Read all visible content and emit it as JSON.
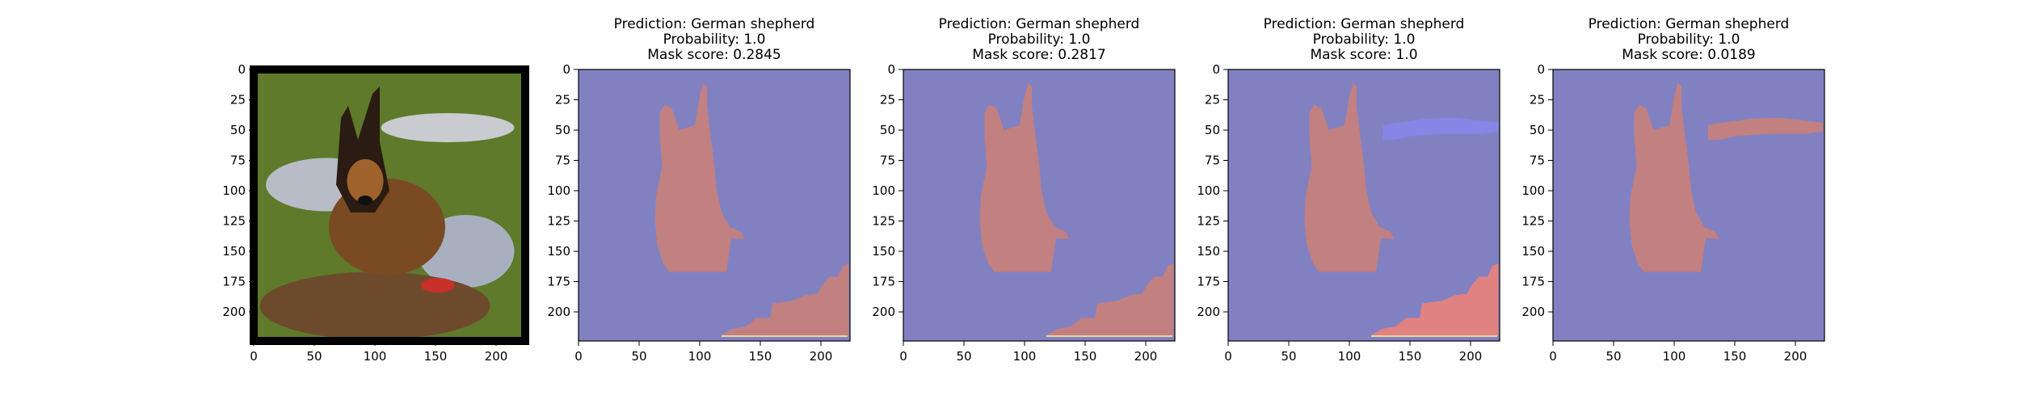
{
  "chart_data": [
    {
      "type": "image",
      "image": "german-shepherd-photo",
      "title": [],
      "xlim": [
        0,
        224
      ],
      "ylim": [
        224,
        0
      ],
      "xticks": [
        0,
        50,
        100,
        150,
        200
      ],
      "yticks": [
        0,
        25,
        50,
        75,
        100,
        125,
        150,
        175,
        200
      ]
    },
    {
      "type": "heatmap",
      "title": [
        "Prediction: German shepherd",
        "Probability: 1.0",
        "Mask score: 0.2845"
      ],
      "xlim": [
        0,
        224
      ],
      "ylim": [
        224,
        0
      ],
      "xticks": [
        0,
        50,
        100,
        150,
        200
      ],
      "yticks": [
        0,
        25,
        50,
        75,
        100,
        125,
        150,
        175,
        200
      ],
      "background_color": "#8181c2",
      "regions": [
        {
          "shape": "dog",
          "color": "#c28081"
        },
        {
          "shape": "ground",
          "color": "#c28081"
        }
      ]
    },
    {
      "type": "heatmap",
      "title": [
        "Prediction: German shepherd",
        "Probability: 1.0",
        "Mask score: 0.2817"
      ],
      "xlim": [
        0,
        224
      ],
      "ylim": [
        224,
        0
      ],
      "xticks": [
        0,
        50,
        100,
        150,
        200
      ],
      "yticks": [
        0,
        25,
        50,
        75,
        100,
        125,
        150,
        175,
        200
      ],
      "background_color": "#8181c2",
      "regions": [
        {
          "shape": "dog",
          "color": "#c28081"
        },
        {
          "shape": "ground",
          "color": "#c28081"
        }
      ]
    },
    {
      "type": "heatmap",
      "title": [
        "Prediction: German shepherd",
        "Probability: 1.0",
        "Mask score: 1.0"
      ],
      "xlim": [
        0,
        224
      ],
      "ylim": [
        224,
        0
      ],
      "xticks": [
        0,
        50,
        100,
        150,
        200
      ],
      "yticks": [
        0,
        25,
        50,
        75,
        100,
        125,
        150,
        175,
        200
      ],
      "background_color": "#8181c2",
      "regions": [
        {
          "shape": "dog",
          "color": "#c28081"
        },
        {
          "shape": "strip",
          "color": "#8686e6"
        },
        {
          "shape": "ground",
          "color": "#e08282"
        }
      ]
    },
    {
      "type": "heatmap",
      "title": [
        "Prediction: German shepherd",
        "Probability: 1.0",
        "Mask score: 0.0189"
      ],
      "xlim": [
        0,
        224
      ],
      "ylim": [
        224,
        0
      ],
      "xticks": [
        0,
        50,
        100,
        150,
        200
      ],
      "yticks": [
        0,
        25,
        50,
        75,
        100,
        125,
        150,
        175,
        200
      ],
      "background_color": "#8181c2",
      "regions": [
        {
          "shape": "dog",
          "color": "#c28081"
        },
        {
          "shape": "strip",
          "color": "#c28081"
        }
      ]
    }
  ]
}
